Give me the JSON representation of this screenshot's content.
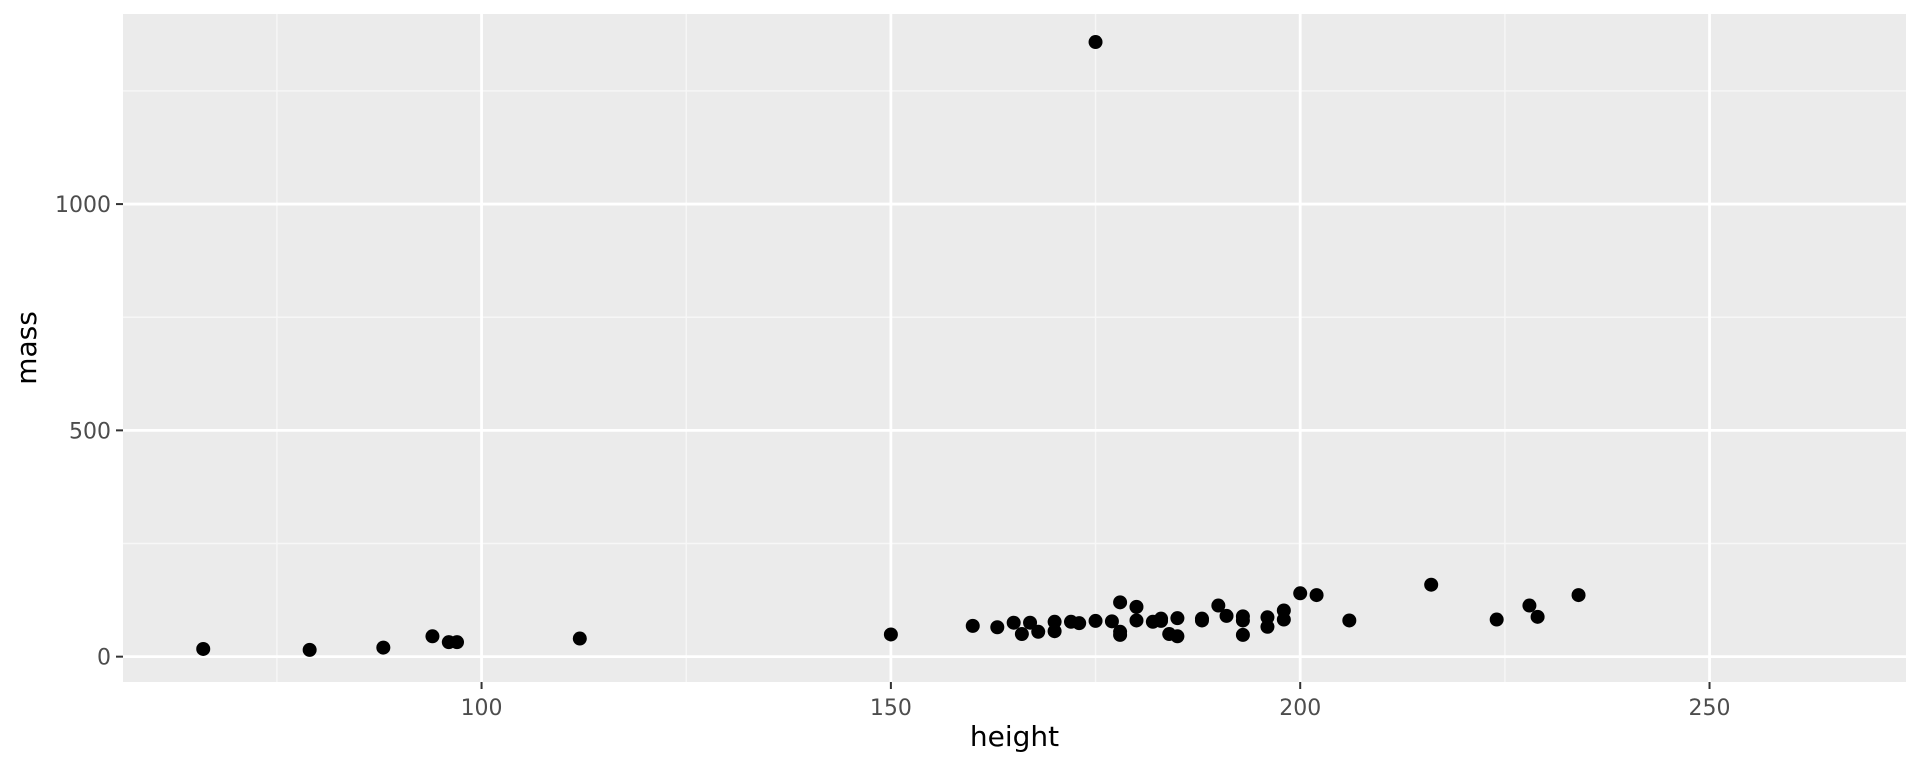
{
  "chart_data": {
    "type": "scatter",
    "title": "",
    "xlabel": "height",
    "ylabel": "mass",
    "xlim": [
      56.2,
      274
    ],
    "ylim": [
      -56,
      1420
    ],
    "x_ticks": [
      100,
      150,
      200,
      250
    ],
    "x_minor_ticks": [
      75,
      125,
      175,
      225
    ],
    "y_ticks": [
      0,
      500,
      1000
    ],
    "y_minor_ticks": [
      250,
      750,
      1250
    ],
    "grid": true,
    "legend": "none",
    "points": [
      {
        "x": 66,
        "y": 17
      },
      {
        "x": 79,
        "y": 15
      },
      {
        "x": 88,
        "y": 20
      },
      {
        "x": 94,
        "y": 45
      },
      {
        "x": 96,
        "y": 32
      },
      {
        "x": 97,
        "y": 32
      },
      {
        "x": 112,
        "y": 40
      },
      {
        "x": 150,
        "y": 49
      },
      {
        "x": 160,
        "y": 68
      },
      {
        "x": 163,
        "y": 65
      },
      {
        "x": 165,
        "y": 75
      },
      {
        "x": 166,
        "y": 50
      },
      {
        "x": 167,
        "y": 75
      },
      {
        "x": 168,
        "y": 55
      },
      {
        "x": 170,
        "y": 77
      },
      {
        "x": 170,
        "y": 56.2
      },
      {
        "x": 172,
        "y": 77
      },
      {
        "x": 173,
        "y": 74
      },
      {
        "x": 175,
        "y": 1358
      },
      {
        "x": 175,
        "y": 79
      },
      {
        "x": 177,
        "y": 78
      },
      {
        "x": 178,
        "y": 120
      },
      {
        "x": 178,
        "y": 55
      },
      {
        "x": 178,
        "y": 48
      },
      {
        "x": 180,
        "y": 110
      },
      {
        "x": 180,
        "y": 80
      },
      {
        "x": 182,
        "y": 77
      },
      {
        "x": 183,
        "y": 84
      },
      {
        "x": 183,
        "y": 79
      },
      {
        "x": 184,
        "y": 50
      },
      {
        "x": 185,
        "y": 85
      },
      {
        "x": 185,
        "y": 45
      },
      {
        "x": 188,
        "y": 84
      },
      {
        "x": 188,
        "y": 80
      },
      {
        "x": 190,
        "y": 113
      },
      {
        "x": 191,
        "y": 90
      },
      {
        "x": 193,
        "y": 89
      },
      {
        "x": 193,
        "y": 80
      },
      {
        "x": 193,
        "y": 48
      },
      {
        "x": 196,
        "y": 87
      },
      {
        "x": 196,
        "y": 66
      },
      {
        "x": 198,
        "y": 102
      },
      {
        "x": 198,
        "y": 82
      },
      {
        "x": 200,
        "y": 140
      },
      {
        "x": 202,
        "y": 136
      },
      {
        "x": 206,
        "y": 80
      },
      {
        "x": 216,
        "y": 159
      },
      {
        "x": 224,
        "y": 82
      },
      {
        "x": 228,
        "y": 113
      },
      {
        "x": 229,
        "y": 88
      },
      {
        "x": 234,
        "y": 136
      }
    ]
  },
  "colors": {
    "panel_background": "#ebebeb",
    "grid_major": "#ffffff",
    "grid_minor": "#f7f7f7",
    "point": "#000000",
    "tick_label": "#4d4d4d",
    "tick_mark": "#333333"
  }
}
